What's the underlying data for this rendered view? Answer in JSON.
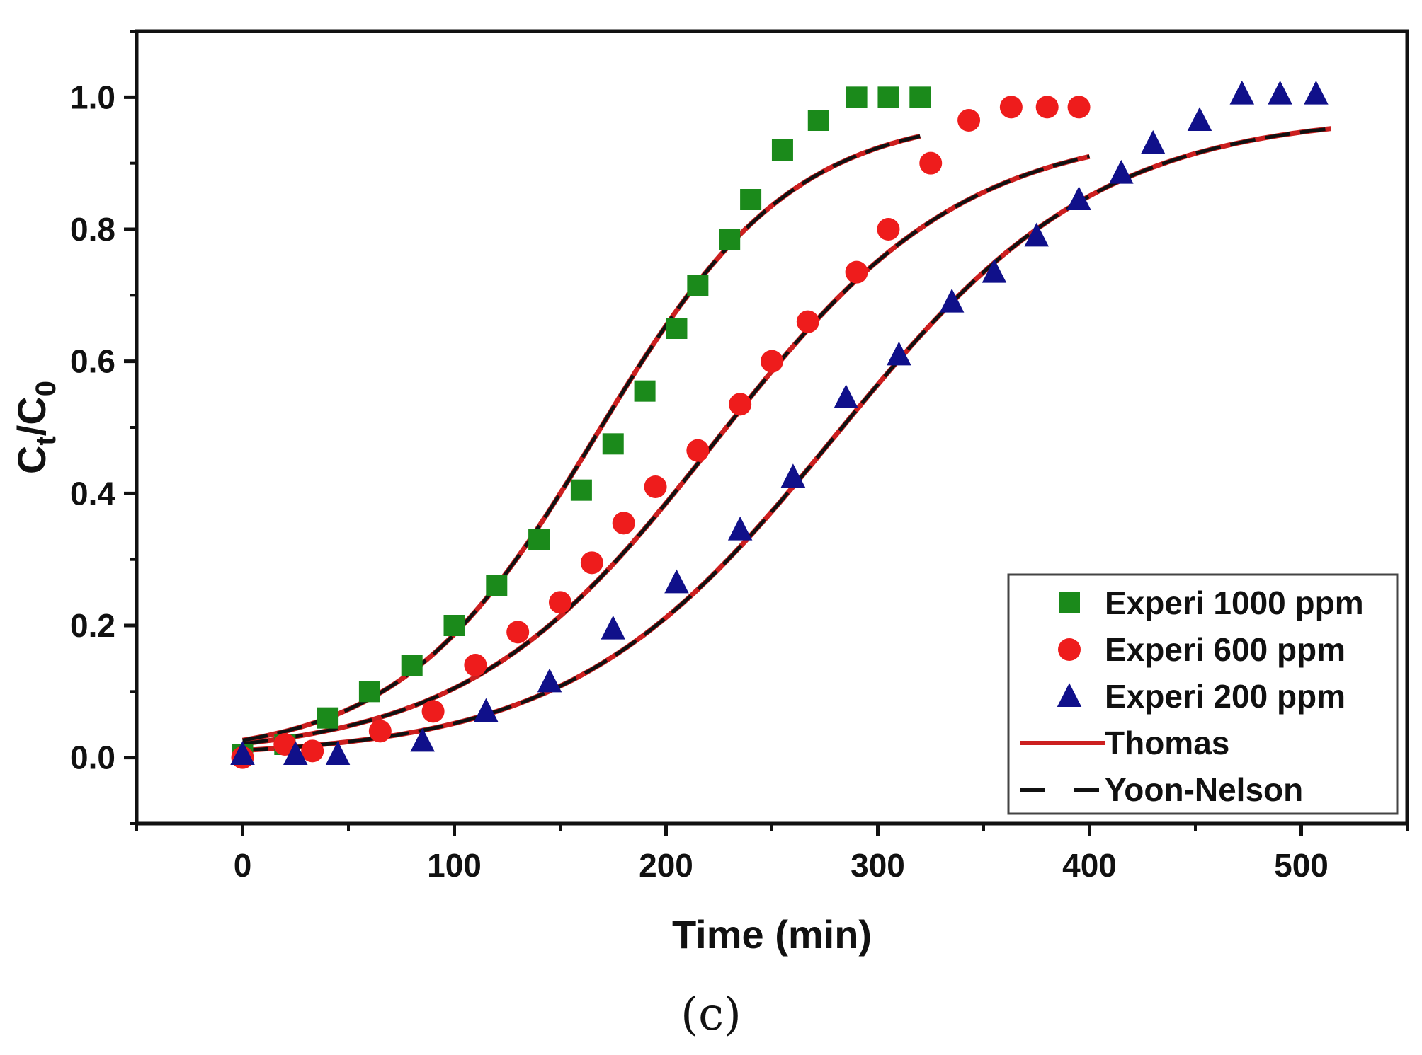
{
  "chart_data": {
    "type": "scatter",
    "title": "",
    "panel_label": "(c)",
    "xlabel": "Time (min)",
    "ylabel": {
      "main": "C",
      "sub1": "t",
      "slash": "/C",
      "sub2": "0"
    },
    "xlim": [
      -50,
      550
    ],
    "ylim": [
      -0.1,
      1.1
    ],
    "x_ticks": [
      0,
      100,
      200,
      300,
      400,
      500
    ],
    "y_ticks": [
      0.0,
      0.2,
      0.4,
      0.6,
      0.8,
      1.0
    ],
    "x_tick_labels": [
      "0",
      "100",
      "200",
      "300",
      "400",
      "500"
    ],
    "y_tick_labels": [
      "0.0",
      "0.2",
      "0.4",
      "0.6",
      "0.8",
      "1.0"
    ],
    "legend_position": "bottom-right",
    "series": [
      {
        "name": "Experi 1000 ppm",
        "marker": "square",
        "color": "#1b8a1b",
        "x": [
          0,
          20,
          40,
          60,
          80,
          100,
          120,
          140,
          160,
          175,
          190,
          205,
          215,
          230,
          240,
          255,
          272,
          290,
          305,
          320
        ],
        "y": [
          0.005,
          0.02,
          0.06,
          0.1,
          0.14,
          0.2,
          0.26,
          0.33,
          0.405,
          0.475,
          0.555,
          0.65,
          0.715,
          0.785,
          0.845,
          0.92,
          0.965,
          1.0,
          1.0,
          1.0
        ]
      },
      {
        "name": "Experi 600 ppm",
        "marker": "circle",
        "color": "#ee1c1c",
        "x": [
          0,
          20,
          33,
          65,
          90,
          110,
          130,
          150,
          165,
          180,
          195,
          215,
          235,
          250,
          267,
          290,
          305,
          325,
          343,
          363,
          380,
          395
        ],
        "y": [
          0.0,
          0.02,
          0.01,
          0.04,
          0.07,
          0.14,
          0.19,
          0.235,
          0.295,
          0.355,
          0.41,
          0.465,
          0.535,
          0.6,
          0.66,
          0.735,
          0.8,
          0.9,
          0.965,
          0.985,
          0.985,
          0.985
        ]
      },
      {
        "name": "Experi 200 ppm",
        "marker": "triangle",
        "color": "#10108a",
        "x": [
          0,
          25,
          45,
          85,
          115,
          145,
          175,
          205,
          235,
          260,
          285,
          310,
          335,
          355,
          375,
          395,
          415,
          430,
          452,
          472,
          490,
          507
        ],
        "y": [
          0.005,
          0.005,
          0.005,
          0.025,
          0.07,
          0.115,
          0.195,
          0.265,
          0.345,
          0.425,
          0.545,
          0.61,
          0.69,
          0.735,
          0.79,
          0.845,
          0.885,
          0.93,
          0.965,
          1.005,
          1.005,
          1.005
        ]
      },
      {
        "name": "Thomas",
        "line": "solid",
        "color": "#cc1f1f",
        "fits": [
          {
            "for": "Experi 1000 ppm",
            "x0": 0,
            "x1": 320,
            "k": 0.0215,
            "t50": 167,
            "qmax": 0.976
          },
          {
            "for": "Experi 600 ppm",
            "x0": 0,
            "x1": 400,
            "k": 0.017,
            "t50": 223,
            "qmax": 0.955
          },
          {
            "for": "Experi 200 ppm",
            "x0": 0,
            "x1": 515,
            "k": 0.016,
            "t50": 280,
            "qmax": 0.975
          }
        ]
      },
      {
        "name": "Yoon-Nelson",
        "line": "dashed",
        "color": "#111111",
        "fits": [
          {
            "for": "Experi 1000 ppm",
            "x0": 0,
            "x1": 320,
            "k": 0.0215,
            "t50": 167,
            "qmax": 0.976
          },
          {
            "for": "Experi 600 ppm",
            "x0": 0,
            "x1": 400,
            "k": 0.017,
            "t50": 223,
            "qmax": 0.955
          },
          {
            "for": "Experi 200 ppm",
            "x0": 0,
            "x1": 515,
            "k": 0.016,
            "t50": 280,
            "qmax": 0.975
          }
        ]
      }
    ]
  }
}
